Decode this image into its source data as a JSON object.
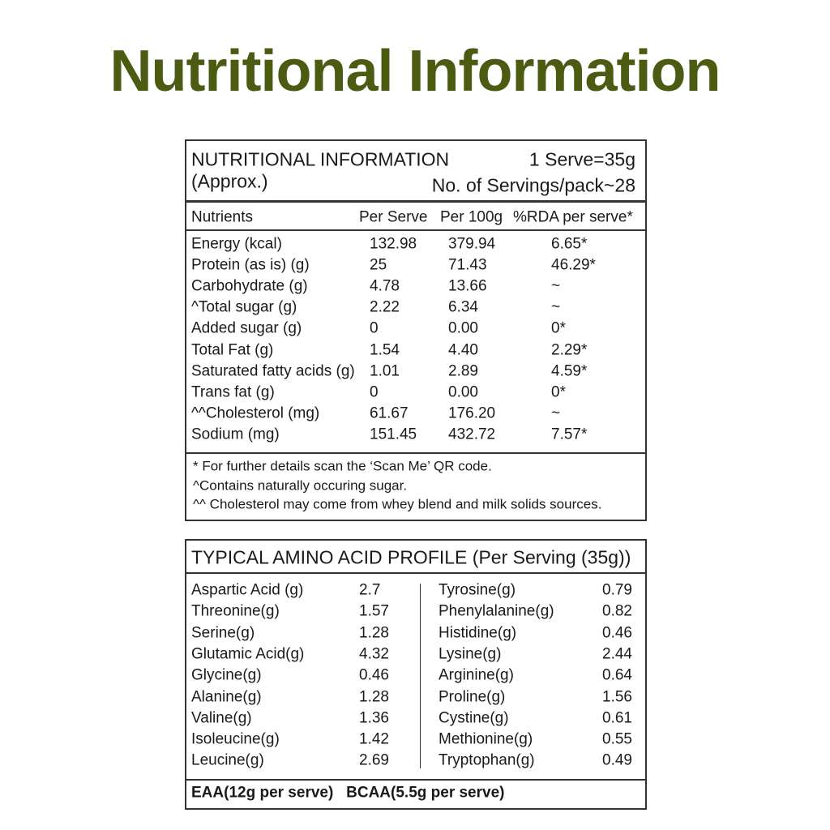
{
  "title": "Nutritional Information",
  "nutrition": {
    "heading": "NUTRITIONAL INFORMATION",
    "subheading": "(Approx.)",
    "serve": "1 Serve=35g",
    "servings": "No. of Servings/pack~28",
    "columns": [
      "Nutrients",
      "Per Serve",
      "Per 100g",
      "%RDA per serve*"
    ],
    "rows": [
      [
        "Energy (kcal)",
        "132.98",
        "379.94",
        "6.65*"
      ],
      [
        "Protein (as is) (g)",
        "25",
        "71.43",
        "46.29*"
      ],
      [
        "Carbohydrate (g)",
        "4.78",
        "13.66",
        "~"
      ],
      [
        "^Total sugar (g)",
        "2.22",
        "6.34",
        "~"
      ],
      [
        "Added sugar (g)",
        "0",
        "0.00",
        "0*"
      ],
      [
        "Total Fat (g)",
        "1.54",
        "4.40",
        "2.29*"
      ],
      [
        "Saturated fatty acids (g)",
        "1.01",
        "2.89",
        "4.59*"
      ],
      [
        "Trans fat (g)",
        "0",
        "0.00",
        "0*"
      ],
      [
        "^^Cholesterol (mg)",
        "61.67",
        "176.20",
        "~"
      ],
      [
        "Sodium (mg)",
        "151.45",
        "432.72",
        "7.57*"
      ]
    ],
    "notes": [
      "* For further details scan the ‘Scan Me’ QR code.",
      "^Contains naturally occuring sugar.",
      "^^ Cholesterol may come from whey blend and milk solids sources."
    ]
  },
  "amino": {
    "heading": "TYPICAL AMINO ACID PROFILE  (Per Serving (35g))",
    "left": [
      [
        "Aspartic Acid (g)",
        "2.7"
      ],
      [
        "Threonine(g)",
        "1.57"
      ],
      [
        "Serine(g)",
        "1.28"
      ],
      [
        "Glutamic Acid(g)",
        "4.32"
      ],
      [
        "Glycine(g)",
        "0.46"
      ],
      [
        "Alanine(g)",
        "1.28"
      ],
      [
        "Valine(g)",
        "1.36"
      ],
      [
        "Isoleucine(g)",
        "1.42"
      ],
      [
        "Leucine(g)",
        "2.69"
      ]
    ],
    "right": [
      [
        "Tyrosine(g)",
        "0.79"
      ],
      [
        "Phenylalanine(g)",
        "0.82"
      ],
      [
        "Histidine(g)",
        "0.46"
      ],
      [
        "Lysine(g)",
        "2.44"
      ],
      [
        "Arginine(g)",
        "0.64"
      ],
      [
        "Proline(g)",
        "1.56"
      ],
      [
        "Cystine(g)",
        "0.61"
      ],
      [
        "Methionine(g)",
        "0.55"
      ],
      [
        "Tryptophan(g)",
        "0.49"
      ]
    ],
    "footer": "EAA(12g per serve)   BCAA(5.5g per serve)"
  }
}
